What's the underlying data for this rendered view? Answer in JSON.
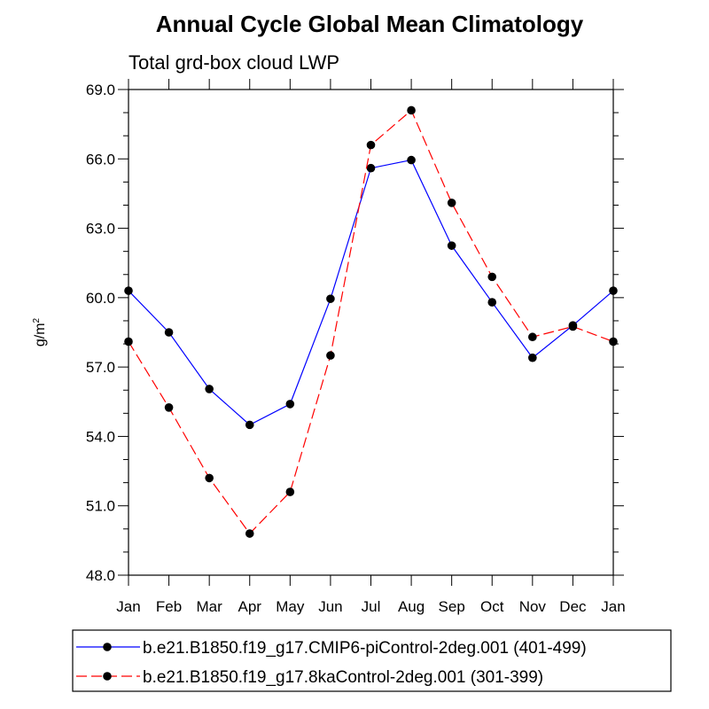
{
  "chart_data": {
    "type": "line",
    "title": "Annual Cycle Global Mean Climatology",
    "subtitle": "Total grd-box cloud LWP",
    "ylabel": "g/m",
    "ylabel_superscript": "2",
    "xlabel": "",
    "categories": [
      "Jan",
      "Feb",
      "Mar",
      "Apr",
      "May",
      "Jun",
      "Jul",
      "Aug",
      "Sep",
      "Oct",
      "Nov",
      "Dec",
      "Jan"
    ],
    "ylim": [
      48.0,
      69.0
    ],
    "yticks": [
      "48.0",
      "51.0",
      "54.0",
      "57.0",
      "60.0",
      "63.0",
      "66.0",
      "69.0"
    ],
    "legend_location": "bottom",
    "series": [
      {
        "name": "b.e21.B1850.f19_g17.CMIP6-piControl-2deg.001 (401-499)",
        "color": "#0000ff",
        "line_style": "solid",
        "values": [
          60.3,
          58.5,
          56.05,
          54.5,
          55.4,
          59.95,
          65.6,
          65.95,
          62.25,
          59.8,
          57.4,
          58.8,
          60.3
        ]
      },
      {
        "name": "b.e21.B1850.f19_g17.8kaControl-2deg.001 (301-399)",
        "color": "#ff0000",
        "line_style": "dashed",
        "values": [
          58.1,
          55.25,
          52.2,
          49.8,
          51.6,
          57.5,
          66.6,
          68.1,
          64.1,
          60.9,
          58.3,
          58.75,
          58.1
        ]
      }
    ]
  }
}
